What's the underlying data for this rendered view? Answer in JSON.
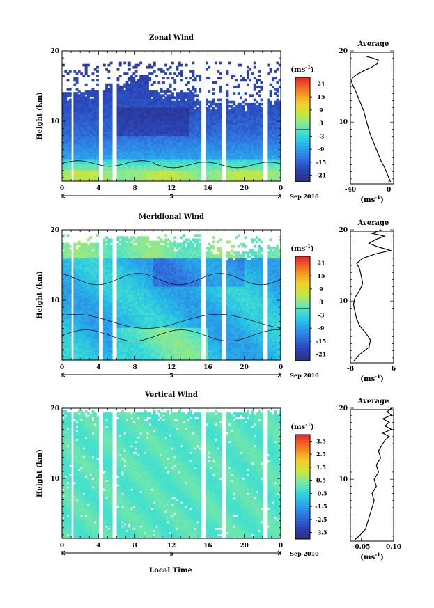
{
  "figure": {
    "xlabel": "Local Time"
  },
  "chart_data": [
    {
      "type": "heatmap",
      "title": "Zonal Wind",
      "ylabel": "Height (km)",
      "xlim": [
        0,
        24
      ],
      "ylim": [
        1.5,
        20
      ],
      "xticks": [
        "0",
        "4",
        "8",
        "12",
        "16",
        "20",
        "0"
      ],
      "yticks": [
        "10",
        "20"
      ],
      "date_marker": "5",
      "date_label": "Sep 2010",
      "colorbar": {
        "unit": "(ms",
        "unit_exp": "-1",
        "unit_close": ")",
        "ticks": [
          "21",
          "15",
          "9",
          "3",
          "-3",
          "-9",
          "-15",
          "-21"
        ],
        "min": -24,
        "max": 24,
        "contour_level": 0
      },
      "average": {
        "title": "Average",
        "xlim": [
          -40,
          5
        ],
        "xticks": [
          "-40",
          "0"
        ],
        "xlabel": "(ms",
        "xlabel_exp": "-1",
        "xlabel_close": ")",
        "yticks": [
          "10",
          "20"
        ],
        "profile": [
          [
            1.5,
            2
          ],
          [
            2.5,
            -1
          ],
          [
            3.5,
            -4
          ],
          [
            4.5,
            -8
          ],
          [
            5.5,
            -11
          ],
          [
            6.5,
            -14
          ],
          [
            7.5,
            -17
          ],
          [
            8.5,
            -20
          ],
          [
            9.5,
            -22
          ],
          [
            10.5,
            -24
          ],
          [
            11.5,
            -26
          ],
          [
            12.5,
            -29
          ],
          [
            13.5,
            -32
          ],
          [
            14.5,
            -35
          ],
          [
            15,
            -37
          ],
          [
            15.7,
            -39
          ],
          [
            16.2,
            -38
          ],
          [
            16.7,
            -33
          ],
          [
            17.2,
            -26
          ],
          [
            17.7,
            -18
          ],
          [
            18.2,
            -12
          ],
          [
            18.7,
            -11
          ],
          [
            19.0,
            -17
          ],
          [
            19.2,
            -23
          ]
        ]
      }
    },
    {
      "type": "heatmap",
      "title": "Meridional Wind",
      "ylabel": "Height (km)",
      "xlim": [
        0,
        24
      ],
      "ylim": [
        1.5,
        20
      ],
      "xticks": [
        "0",
        "4",
        "8",
        "12",
        "16",
        "20",
        "0"
      ],
      "yticks": [
        "10",
        "20"
      ],
      "date_marker": "5",
      "date_label": "Sep 2010",
      "colorbar": {
        "unit": "(ms",
        "unit_exp": "-1",
        "unit_close": ")",
        "ticks": [
          "21",
          "15",
          "9",
          "3",
          "-3",
          "-9",
          "-15",
          "-21"
        ],
        "min": -24,
        "max": 24,
        "contour_level": 0
      },
      "average": {
        "title": "Average",
        "xlim": [
          -8,
          6
        ],
        "xticks": [
          "-8",
          "6"
        ],
        "xlabel": "(ms",
        "xlabel_exp": "-1",
        "xlabel_close": ")",
        "yticks": [
          "10",
          "20"
        ],
        "profile": [
          [
            1.5,
            -7
          ],
          [
            2.5,
            -5
          ],
          [
            3.5,
            -2
          ],
          [
            4.5,
            -1.5
          ],
          [
            5.5,
            -3
          ],
          [
            6.5,
            -5
          ],
          [
            7.5,
            -6
          ],
          [
            8.5,
            -6.5
          ],
          [
            9.5,
            -7
          ],
          [
            10.5,
            -6.5
          ],
          [
            11.5,
            -5
          ],
          [
            12.5,
            -4
          ],
          [
            13.5,
            -4.5
          ],
          [
            14.5,
            -5
          ],
          [
            15.3,
            -6
          ],
          [
            16.0,
            -4
          ],
          [
            16.6,
            0
          ],
          [
            17.1,
            5
          ],
          [
            17.6,
            1
          ],
          [
            18.1,
            -2
          ],
          [
            18.6,
            0
          ],
          [
            19.1,
            3
          ],
          [
            19.5,
            -1
          ],
          [
            20,
            2
          ]
        ]
      }
    },
    {
      "type": "heatmap",
      "title": "Vertical Wind",
      "ylabel": "Height (km)",
      "xlim": [
        0,
        24
      ],
      "ylim": [
        1.5,
        20
      ],
      "xticks": [
        "0",
        "4",
        "8",
        "12",
        "16",
        "20",
        "0"
      ],
      "yticks": [
        "10",
        "20"
      ],
      "date_marker": "5",
      "date_label": "Sep 2010",
      "colorbar": {
        "unit": "(ms",
        "unit_exp": "-1",
        "unit_close": ")",
        "ticks": [
          "3.5",
          "2.5",
          "1.5",
          "0.5",
          "-0.5",
          "-1.5",
          "-2.5",
          "-3.5"
        ],
        "min": -4,
        "max": 4
      },
      "average": {
        "title": "Average",
        "xlim": [
          -0.1,
          0.1
        ],
        "xticks": [
          "-0.05",
          "0.10"
        ],
        "xlabel": "(ms",
        "xlabel_exp": "-1",
        "xlabel_close": ")",
        "yticks": [
          "10",
          "20"
        ],
        "profile": [
          [
            1.5,
            -0.08
          ],
          [
            2,
            -0.06
          ],
          [
            3,
            -0.03
          ],
          [
            4,
            -0.02
          ],
          [
            5,
            -0.01
          ],
          [
            6,
            0.0
          ],
          [
            7,
            0.01
          ],
          [
            8,
            0.0
          ],
          [
            9,
            0.02
          ],
          [
            10,
            0.01
          ],
          [
            11,
            0.03
          ],
          [
            12,
            0.02
          ],
          [
            13,
            0.04
          ],
          [
            14,
            0.03
          ],
          [
            15,
            0.05
          ],
          [
            15.5,
            0.06
          ],
          [
            16,
            0.08
          ],
          [
            16.5,
            0.05
          ],
          [
            17,
            0.09
          ],
          [
            17.5,
            0.06
          ],
          [
            18,
            0.08
          ],
          [
            18.5,
            0.05
          ],
          [
            19,
            0.09
          ],
          [
            19.5,
            0.07
          ],
          [
            20,
            0.09
          ]
        ]
      }
    }
  ]
}
